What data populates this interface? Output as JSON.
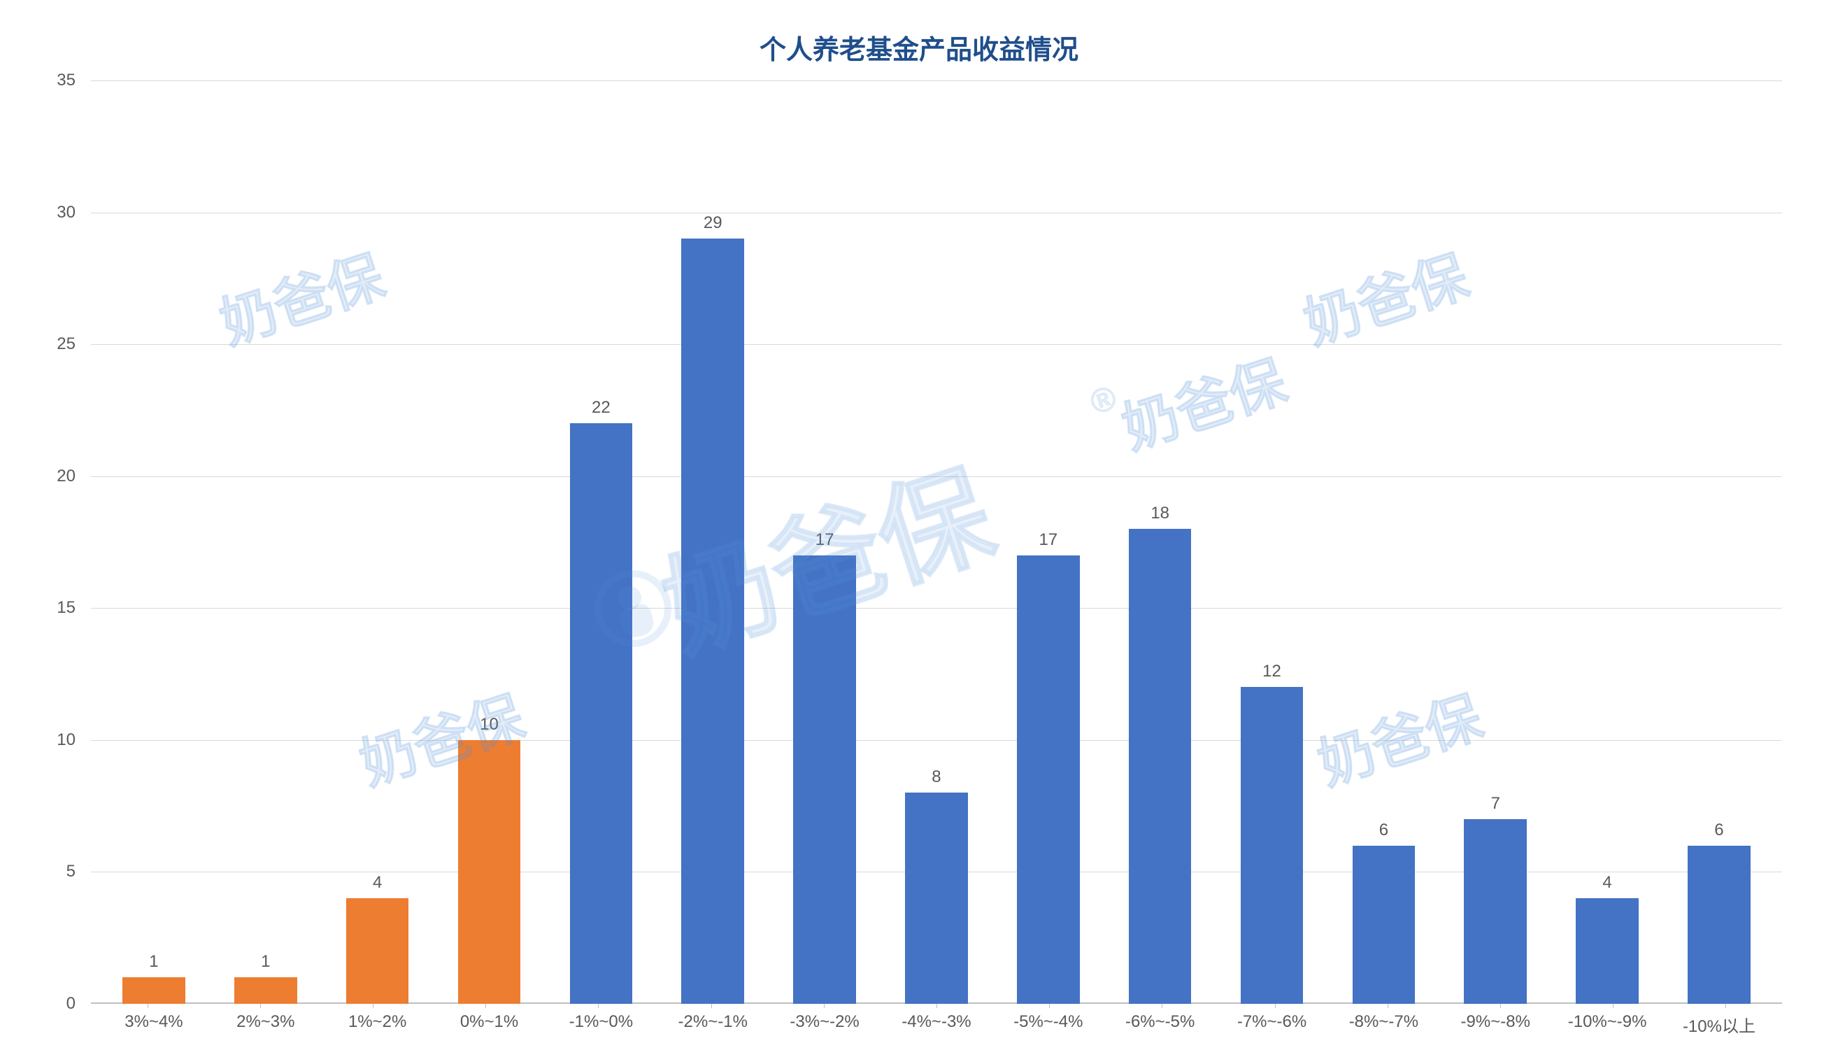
{
  "chart": {
    "type": "bar",
    "title": "个人养老基金产品收益情况",
    "title_color": "#1f4e8c",
    "title_fontsize": 38,
    "background_color": "#ffffff",
    "grid_color": "#d9d9d9",
    "axis_color": "#bfbfbf",
    "tick_label_color": "#595959",
    "tick_fontsize": 24,
    "value_label_fontsize": 24,
    "ylim": [
      0,
      35
    ],
    "ytick_step": 5,
    "yticks": [
      0,
      5,
      10,
      15,
      20,
      25,
      30,
      35
    ],
    "bar_width": 0.56,
    "categories": [
      "3%~4%",
      "2%~3%",
      "1%~2%",
      "0%~1%",
      "-1%~0%",
      "-2%~-1%",
      "-3%~-2%",
      "-4%~-3%",
      "-5%~-4%",
      "-6%~-5%",
      "-7%~-6%",
      "-8%~-7%",
      "-9%~-8%",
      "-10%~-9%",
      "-10%以上"
    ],
    "values": [
      1,
      1,
      4,
      10,
      22,
      29,
      17,
      8,
      17,
      18,
      12,
      6,
      7,
      4,
      6
    ],
    "bar_colors": [
      "#ed7d31",
      "#ed7d31",
      "#ed7d31",
      "#ed7d31",
      "#4472c4",
      "#4472c4",
      "#4472c4",
      "#4472c4",
      "#4472c4",
      "#4472c4",
      "#4472c4",
      "#4472c4",
      "#4472c4",
      "#4472c4",
      "#4472c4"
    ],
    "watermark_text": "奶爸保",
    "watermark_color": "rgba(85,150,220,0.15)"
  }
}
